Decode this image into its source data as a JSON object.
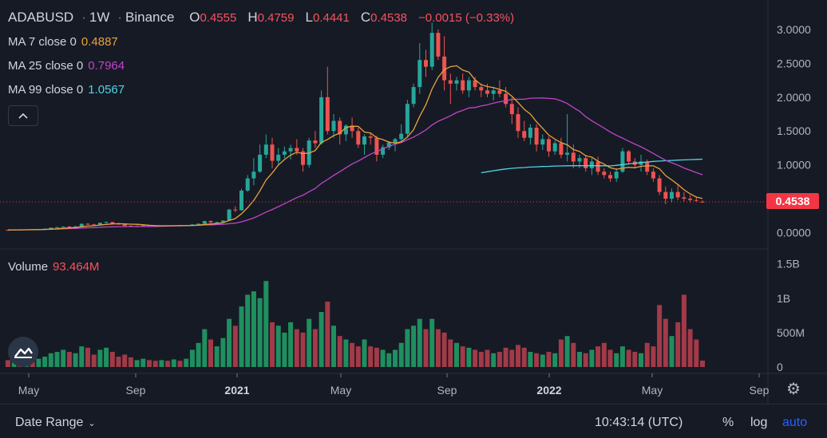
{
  "header": {
    "symbol": "ADABUSD",
    "interval": "1W",
    "exchange": "Binance",
    "ohlc": [
      {
        "key": "O",
        "value": "0.4555"
      },
      {
        "key": "H",
        "value": "0.4759"
      },
      {
        "key": "L",
        "value": "0.4441"
      },
      {
        "key": "C",
        "value": "0.4538"
      }
    ],
    "change": "−0.0015 (−0.33%)"
  },
  "indicators": [
    {
      "label": "MA 7 close 0",
      "value": "0.4887",
      "color": "#e8a33c"
    },
    {
      "label": "MA 25 close 0",
      "value": "0.7964",
      "color": "#c044c9"
    },
    {
      "label": "MA 99 close 0",
      "value": "1.0567",
      "color": "#4fd5e3"
    }
  ],
  "collapse_icon": "chevron-up-icon",
  "volume_legend": {
    "label": "Volume",
    "value": "93.464M"
  },
  "last_price_label": "0.4538",
  "colors": {
    "up": "#26a69a",
    "down": "#ef5350",
    "vol_up": "#1f8f5f",
    "vol_down": "#a23a48",
    "last_price": "#f23645"
  },
  "bottom_bar": {
    "date_range_label": "Date Range",
    "clock": "10:43:14 (UTC)",
    "percent_label": "%",
    "log_label": "log",
    "auto_label": "auto"
  },
  "chart_data": {
    "type": "candlestick",
    "price_axis": {
      "ticks": [
        "3.0000",
        "2.5000",
        "2.0000",
        "1.5000",
        "1.0000",
        "0.0000"
      ],
      "range": [
        -0.1,
        3.2
      ]
    },
    "volume_axis": {
      "ticks": [
        "1.5B",
        "1B",
        "500M",
        "0"
      ],
      "range": [
        0,
        1.6
      ]
    },
    "time_axis": {
      "ticks": [
        "May",
        "Sep",
        "2021",
        "May",
        "Sep",
        "2022",
        "May",
        "Sep"
      ],
      "bold_ticks": [
        "2021",
        "2022"
      ]
    },
    "candles": [
      [
        0.04,
        0.042,
        0.035,
        0.038,
        0.1
      ],
      [
        0.038,
        0.045,
        0.036,
        0.043,
        0.11
      ],
      [
        0.043,
        0.046,
        0.04,
        0.041,
        0.09
      ],
      [
        0.041,
        0.048,
        0.039,
        0.046,
        0.1
      ],
      [
        0.046,
        0.05,
        0.043,
        0.044,
        0.09
      ],
      [
        0.044,
        0.052,
        0.042,
        0.05,
        0.12
      ],
      [
        0.05,
        0.06,
        0.048,
        0.058,
        0.15
      ],
      [
        0.058,
        0.075,
        0.055,
        0.072,
        0.2
      ],
      [
        0.072,
        0.085,
        0.068,
        0.08,
        0.22
      ],
      [
        0.08,
        0.092,
        0.076,
        0.088,
        0.25
      ],
      [
        0.088,
        0.1,
        0.082,
        0.085,
        0.22
      ],
      [
        0.085,
        0.095,
        0.08,
        0.092,
        0.2
      ],
      [
        0.092,
        0.135,
        0.09,
        0.13,
        0.3
      ],
      [
        0.13,
        0.14,
        0.11,
        0.12,
        0.28
      ],
      [
        0.12,
        0.13,
        0.105,
        0.115,
        0.18
      ],
      [
        0.115,
        0.15,
        0.112,
        0.145,
        0.25
      ],
      [
        0.145,
        0.165,
        0.135,
        0.155,
        0.28
      ],
      [
        0.155,
        0.16,
        0.13,
        0.135,
        0.22
      ],
      [
        0.135,
        0.145,
        0.115,
        0.12,
        0.15
      ],
      [
        0.12,
        0.128,
        0.095,
        0.1,
        0.18
      ],
      [
        0.1,
        0.11,
        0.088,
        0.095,
        0.14
      ],
      [
        0.095,
        0.105,
        0.085,
        0.098,
        0.1
      ],
      [
        0.098,
        0.11,
        0.092,
        0.105,
        0.12
      ],
      [
        0.105,
        0.112,
        0.095,
        0.102,
        0.1
      ],
      [
        0.102,
        0.108,
        0.094,
        0.099,
        0.09
      ],
      [
        0.099,
        0.106,
        0.093,
        0.103,
        0.1
      ],
      [
        0.103,
        0.11,
        0.096,
        0.1,
        0.09
      ],
      [
        0.1,
        0.108,
        0.092,
        0.105,
        0.11
      ],
      [
        0.105,
        0.112,
        0.098,
        0.101,
        0.09
      ],
      [
        0.101,
        0.11,
        0.095,
        0.108,
        0.12
      ],
      [
        0.108,
        0.125,
        0.103,
        0.12,
        0.25
      ],
      [
        0.12,
        0.135,
        0.115,
        0.13,
        0.35
      ],
      [
        0.13,
        0.175,
        0.125,
        0.17,
        0.55
      ],
      [
        0.17,
        0.18,
        0.14,
        0.15,
        0.4
      ],
      [
        0.15,
        0.16,
        0.14,
        0.155,
        0.3
      ],
      [
        0.155,
        0.18,
        0.148,
        0.178,
        0.42
      ],
      [
        0.178,
        0.35,
        0.175,
        0.34,
        0.7
      ],
      [
        0.34,
        0.39,
        0.3,
        0.33,
        0.6
      ],
      [
        0.33,
        0.65,
        0.32,
        0.62,
        0.88
      ],
      [
        0.62,
        0.85,
        0.6,
        0.8,
        1.05
      ],
      [
        0.8,
        1.1,
        0.7,
        0.9,
        1.1
      ],
      [
        0.9,
        1.3,
        0.88,
        1.15,
        1.0
      ],
      [
        1.15,
        1.45,
        1.1,
        1.3,
        1.25
      ],
      [
        1.3,
        1.4,
        0.95,
        1.06,
        0.65
      ],
      [
        1.06,
        1.25,
        1.0,
        1.15,
        0.6
      ],
      [
        1.15,
        1.27,
        1.1,
        1.2,
        0.5
      ],
      [
        1.2,
        1.3,
        1.08,
        1.25,
        0.65
      ],
      [
        1.25,
        1.38,
        1.15,
        1.2,
        0.55
      ],
      [
        1.2,
        1.25,
        0.9,
        1.0,
        0.5
      ],
      [
        1.0,
        1.4,
        0.96,
        1.36,
        0.7
      ],
      [
        1.36,
        1.5,
        1.25,
        1.32,
        0.55
      ],
      [
        1.32,
        2.1,
        1.3,
        2.0,
        0.8
      ],
      [
        2.0,
        2.45,
        1.45,
        1.5,
        0.95
      ],
      [
        1.5,
        1.75,
        1.4,
        1.65,
        0.6
      ],
      [
        1.65,
        1.7,
        1.3,
        1.45,
        0.45
      ],
      [
        1.45,
        1.6,
        1.35,
        1.58,
        0.4
      ],
      [
        1.58,
        1.7,
        1.4,
        1.5,
        0.35
      ],
      [
        1.5,
        1.55,
        1.25,
        1.3,
        0.3
      ],
      [
        1.3,
        1.45,
        1.15,
        1.42,
        0.4
      ],
      [
        1.42,
        1.46,
        1.3,
        1.4,
        0.3
      ],
      [
        1.4,
        1.43,
        1.05,
        1.15,
        0.28
      ],
      [
        1.15,
        1.3,
        1.1,
        1.26,
        0.25
      ],
      [
        1.26,
        1.35,
        1.22,
        1.33,
        0.2
      ],
      [
        1.33,
        1.4,
        1.2,
        1.38,
        0.25
      ],
      [
        1.38,
        1.6,
        1.35,
        1.46,
        0.35
      ],
      [
        1.46,
        1.96,
        1.42,
        1.9,
        0.55
      ],
      [
        1.9,
        2.2,
        1.85,
        2.15,
        0.6
      ],
      [
        2.15,
        2.8,
        2.05,
        2.55,
        0.7
      ],
      [
        2.55,
        2.7,
        2.3,
        2.45,
        0.55
      ],
      [
        2.45,
        3.1,
        2.4,
        2.95,
        0.7
      ],
      [
        2.95,
        3.0,
        2.55,
        2.6,
        0.55
      ],
      [
        2.6,
        2.9,
        2.1,
        2.25,
        0.5
      ],
      [
        2.25,
        2.35,
        1.9,
        2.2,
        0.4
      ],
      [
        2.2,
        2.3,
        2.1,
        2.25,
        0.35
      ],
      [
        2.25,
        2.35,
        2.05,
        2.1,
        0.3
      ],
      [
        2.1,
        2.3,
        2.0,
        2.25,
        0.28
      ],
      [
        2.25,
        2.3,
        2.1,
        2.15,
        0.25
      ],
      [
        2.15,
        2.2,
        2.0,
        2.1,
        0.22
      ],
      [
        2.1,
        2.2,
        2.0,
        2.05,
        0.25
      ],
      [
        2.05,
        2.15,
        1.95,
        2.1,
        0.2
      ],
      [
        2.1,
        2.25,
        2.0,
        2.05,
        0.22
      ],
      [
        2.05,
        2.15,
        1.85,
        1.9,
        0.28
      ],
      [
        1.9,
        2.0,
        1.6,
        1.75,
        0.25
      ],
      [
        1.75,
        1.85,
        1.4,
        1.5,
        0.32
      ],
      [
        1.5,
        1.65,
        1.35,
        1.4,
        0.28
      ],
      [
        1.4,
        1.6,
        1.3,
        1.55,
        0.22
      ],
      [
        1.55,
        1.6,
        1.2,
        1.3,
        0.2
      ],
      [
        1.3,
        1.45,
        1.22,
        1.38,
        0.18
      ],
      [
        1.38,
        1.42,
        1.12,
        1.2,
        0.22
      ],
      [
        1.2,
        1.36,
        1.15,
        1.32,
        0.2
      ],
      [
        1.32,
        1.4,
        1.1,
        1.15,
        0.4
      ],
      [
        1.15,
        1.75,
        1.05,
        1.18,
        0.45
      ],
      [
        1.18,
        1.3,
        0.95,
        1.05,
        0.35
      ],
      [
        1.05,
        1.15,
        0.95,
        1.1,
        0.22
      ],
      [
        1.1,
        1.15,
        0.9,
        0.95,
        0.2
      ],
      [
        0.95,
        1.1,
        0.85,
        1.05,
        0.25
      ],
      [
        1.05,
        1.12,
        0.85,
        0.9,
        0.3
      ],
      [
        0.9,
        0.95,
        0.8,
        0.85,
        0.35
      ],
      [
        0.85,
        0.9,
        0.75,
        0.8,
        0.25
      ],
      [
        0.8,
        0.95,
        0.75,
        0.9,
        0.2
      ],
      [
        0.9,
        1.25,
        0.88,
        1.2,
        0.3
      ],
      [
        1.2,
        1.22,
        1.0,
        1.05,
        0.25
      ],
      [
        1.05,
        1.1,
        0.95,
        1.0,
        0.22
      ],
      [
        1.0,
        1.15,
        0.9,
        1.05,
        0.2
      ],
      [
        1.05,
        1.08,
        0.85,
        0.9,
        0.35
      ],
      [
        0.9,
        0.95,
        0.75,
        0.8,
        0.3
      ],
      [
        0.8,
        0.85,
        0.55,
        0.6,
        0.9
      ],
      [
        0.6,
        0.68,
        0.42,
        0.5,
        0.7
      ],
      [
        0.5,
        0.65,
        0.45,
        0.6,
        0.45
      ],
      [
        0.6,
        0.7,
        0.48,
        0.52,
        0.65
      ],
      [
        0.52,
        0.6,
        0.46,
        0.5,
        1.05
      ],
      [
        0.5,
        0.55,
        0.44,
        0.48,
        0.55
      ],
      [
        0.48,
        0.52,
        0.45,
        0.47,
        0.4
      ],
      [
        0.4555,
        0.4759,
        0.4441,
        0.4538,
        0.093
      ]
    ]
  }
}
